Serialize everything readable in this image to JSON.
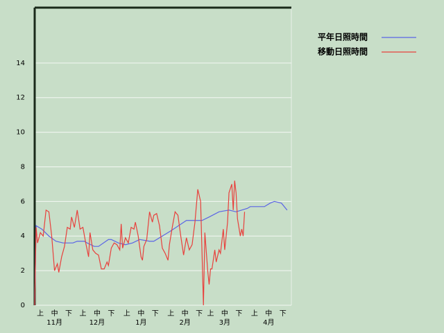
{
  "chart_data": {
    "type": "line",
    "xlim": [
      0,
      181
    ],
    "ylim": [
      0,
      17.2
    ],
    "yticks": [
      0,
      2,
      4,
      6,
      8,
      10,
      12,
      14
    ],
    "grid": true,
    "xticks": [
      {
        "value": 4,
        "label": "上"
      },
      {
        "value": 14,
        "label": "中"
      },
      {
        "value": 24,
        "label": "下"
      },
      {
        "value": 34,
        "label": "上"
      },
      {
        "value": 44,
        "label": "中"
      },
      {
        "value": 54,
        "label": "下"
      },
      {
        "value": 65,
        "label": "上"
      },
      {
        "value": 75,
        "label": "中"
      },
      {
        "value": 85,
        "label": "下"
      },
      {
        "value": 96,
        "label": "上"
      },
      {
        "value": 106,
        "label": "中"
      },
      {
        "value": 116,
        "label": "下"
      },
      {
        "value": 124,
        "label": "上"
      },
      {
        "value": 134,
        "label": "中"
      },
      {
        "value": 144,
        "label": "下"
      },
      {
        "value": 155,
        "label": "上"
      },
      {
        "value": 165,
        "label": "中"
      },
      {
        "value": 175,
        "label": "下"
      }
    ],
    "month_labels": [
      {
        "value": 14,
        "label": "11月"
      },
      {
        "value": 44,
        "label": "12月"
      },
      {
        "value": 75,
        "label": "1月"
      },
      {
        "value": 106,
        "label": "2月"
      },
      {
        "value": 134,
        "label": "3月"
      },
      {
        "value": 165,
        "label": "4月"
      }
    ],
    "legend": "right",
    "series": [
      {
        "name": "平年日照時間",
        "color": "#5a64e6",
        "x": [
          0,
          1,
          5,
          10,
          15,
          20,
          27,
          30,
          35,
          37,
          42,
          45,
          52,
          54,
          59,
          64,
          69,
          74,
          81,
          84,
          96,
          107,
          118,
          123,
          130,
          137,
          142,
          150,
          152,
          162,
          166,
          169,
          174,
          178
        ],
        "values": [
          0,
          4.6,
          4.4,
          4.0,
          3.7,
          3.6,
          3.6,
          3.7,
          3.7,
          3.6,
          3.4,
          3.4,
          3.8,
          3.8,
          3.6,
          3.5,
          3.6,
          3.8,
          3.7,
          3.7,
          4.3,
          4.9,
          4.9,
          5.1,
          5.4,
          5.5,
          5.4,
          5.6,
          5.7,
          5.7,
          5.9,
          6.0,
          5.9,
          5.5
        ]
      },
      {
        "name": "移動日照時間",
        "color": "#e8403c",
        "x": [
          0,
          1,
          2,
          4,
          6,
          8,
          10,
          12,
          14,
          16,
          17,
          19,
          21,
          23,
          25,
          26,
          28,
          30,
          32,
          34,
          36,
          38,
          39,
          41,
          43,
          45,
          47,
          49,
          51,
          52,
          54,
          56,
          58,
          60,
          61,
          62,
          64,
          66,
          68,
          70,
          71,
          73,
          75,
          76,
          77,
          79,
          81,
          83,
          84,
          86,
          88,
          90,
          92,
          94,
          95,
          97,
          99,
          101,
          103,
          105,
          107,
          109,
          111,
          113,
          115,
          117,
          119,
          120,
          122,
          123,
          124,
          125,
          127,
          128,
          130,
          131,
          133,
          134,
          136,
          137,
          139,
          140,
          141,
          142,
          143,
          145,
          146,
          147,
          148
        ],
        "values": [
          0,
          4.5,
          3.6,
          4.2,
          4.0,
          5.5,
          5.4,
          4.0,
          2.0,
          2.4,
          1.9,
          2.8,
          3.4,
          4.5,
          4.4,
          5.1,
          4.5,
          5.5,
          4.4,
          4.5,
          3.6,
          2.8,
          4.2,
          3.2,
          3.0,
          2.9,
          2.1,
          2.1,
          2.5,
          2.3,
          3.3,
          3.6,
          3.5,
          3.2,
          4.7,
          3.3,
          3.9,
          3.6,
          4.5,
          4.4,
          4.8,
          4.0,
          2.8,
          2.6,
          3.4,
          3.8,
          5.4,
          4.8,
          5.2,
          5.3,
          4.6,
          3.3,
          3.0,
          2.6,
          3.5,
          4.5,
          5.4,
          5.2,
          4.0,
          2.9,
          3.9,
          3.2,
          3.5,
          4.8,
          6.7,
          6.0,
          0,
          4.2,
          2.0,
          1.2,
          2.1,
          2.1,
          3.2,
          2.5,
          3.2,
          3.0,
          4.4,
          3.2,
          4.8,
          6.5,
          7.0,
          5.5,
          7.2,
          6.5,
          5.0,
          4.0,
          4.4,
          4.0,
          5.4
        ]
      }
    ]
  }
}
